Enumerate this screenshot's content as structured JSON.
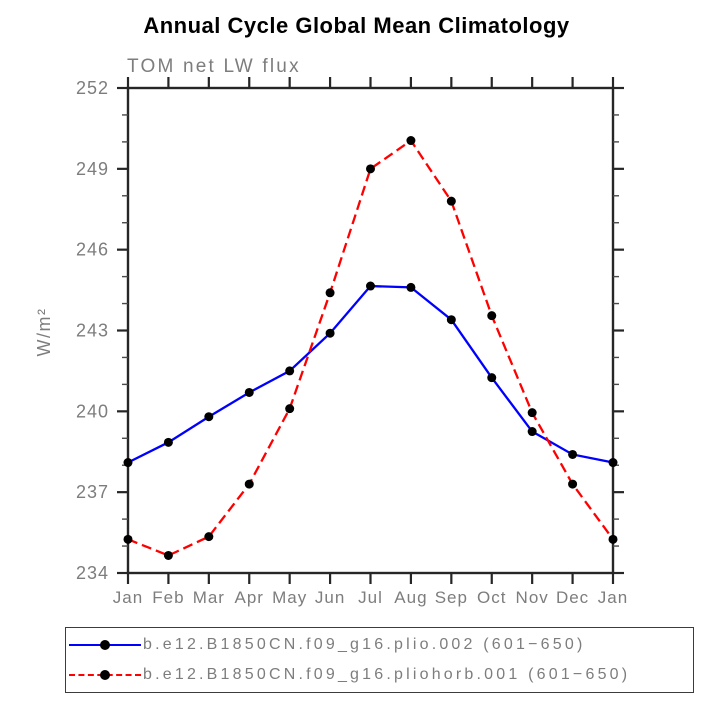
{
  "chart_data": {
    "type": "line",
    "title": "Annual Cycle Global Mean Climatology",
    "subtitle": "TOM net LW flux",
    "ylabel": "W/m²",
    "xlabel": "",
    "categories": [
      "Jan",
      "Feb",
      "Mar",
      "Apr",
      "May",
      "Jun",
      "Jul",
      "Aug",
      "Sep",
      "Oct",
      "Nov",
      "Dec",
      "Jan"
    ],
    "ylim": [
      234,
      252
    ],
    "ytick_step": 3,
    "ytick_minor_step": 1,
    "grid": false,
    "legend_position": "bottom",
    "colors": {
      "frame": "#262626",
      "label_text": "#7d7d7d",
      "title_text": "#000000",
      "marker": "#000000",
      "series1": "#0000ff",
      "series2": "#ff0000"
    },
    "series": [
      {
        "name": "b.e12.B1850CN.f09_g16.plio.002 (601−650)",
        "color": "#0000ff",
        "line_style": "solid",
        "marker": "circle",
        "marker_color": "#000000",
        "values": [
          238.1,
          238.85,
          239.8,
          240.7,
          241.5,
          242.9,
          244.65,
          244.6,
          243.4,
          241.25,
          239.25,
          238.4,
          238.1
        ]
      },
      {
        "name": "b.e12.B1850CN.f09_g16.pliohorb.001 (601−650)",
        "color": "#ff0000",
        "line_style": "dashed",
        "marker": "circle",
        "marker_color": "#000000",
        "values": [
          235.25,
          234.65,
          235.35,
          237.3,
          240.1,
          244.4,
          249.0,
          250.05,
          247.8,
          243.55,
          239.95,
          237.3,
          235.25
        ]
      }
    ]
  }
}
